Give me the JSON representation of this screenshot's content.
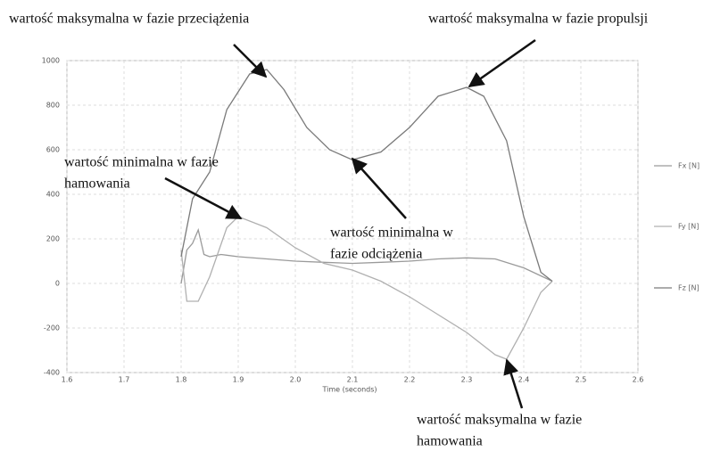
{
  "chart_data": {
    "type": "line",
    "xlabel": "Time (seconds)",
    "xlim": [
      1.6,
      2.6
    ],
    "xticks": [
      1.6,
      1.7,
      1.8,
      1.9,
      {
        "value": 2,
        "label": "2.0"
      },
      2.1,
      2.2,
      2.3,
      2.4,
      2.5,
      2.6
    ],
    "ylim": [
      -400,
      1000
    ],
    "yticks": [
      -400,
      -200,
      0,
      200,
      400,
      600,
      800,
      1000
    ],
    "grid": true,
    "legend": "right",
    "series": [
      {
        "name": "Fx [N]",
        "color": "#9a9a9a",
        "x": [
          1.8,
          1.81,
          1.82,
          1.83,
          1.84,
          1.85,
          1.87,
          1.9,
          1.95,
          2.0,
          2.05,
          2.1,
          2.15,
          2.2,
          2.25,
          2.3,
          2.35,
          2.4,
          2.45
        ],
        "values": [
          0,
          150,
          180,
          240,
          130,
          120,
          130,
          120,
          110,
          100,
          95,
          90,
          95,
          100,
          110,
          115,
          110,
          70,
          10
        ]
      },
      {
        "name": "Fy [N]",
        "color": "#b0b0b0",
        "x": [
          1.8,
          1.81,
          1.83,
          1.85,
          1.88,
          1.9,
          1.95,
          2.0,
          2.05,
          2.1,
          2.15,
          2.2,
          2.25,
          2.3,
          2.35,
          2.37,
          2.4,
          2.43,
          2.45
        ],
        "values": [
          150,
          -80,
          -80,
          30,
          250,
          300,
          250,
          160,
          90,
          60,
          10,
          -60,
          -140,
          -220,
          -320,
          -340,
          -200,
          -40,
          10
        ]
      },
      {
        "name": "Fz [N]",
        "color": "#7a7a7a",
        "x": [
          1.8,
          1.82,
          1.85,
          1.88,
          1.92,
          1.95,
          1.98,
          2.02,
          2.06,
          2.1,
          2.15,
          2.2,
          2.25,
          2.3,
          2.33,
          2.37,
          2.4,
          2.43,
          2.45
        ],
        "values": [
          120,
          380,
          500,
          780,
          940,
          960,
          870,
          700,
          600,
          555,
          590,
          700,
          840,
          880,
          840,
          640,
          300,
          50,
          10
        ]
      }
    ],
    "annotations": [
      {
        "lines": [
          "wartość maksymalna w fazie przeciążenia"
        ]
      },
      {
        "lines": [
          "wartość maksymalna w fazie propulsji"
        ]
      },
      {
        "lines": [
          "wartość minimalna w fazie",
          "hamowania"
        ]
      },
      {
        "lines": [
          "wartość minimalna w",
          "fazie odciążenia"
        ]
      },
      {
        "lines": [
          "wartość maksymalna w fazie",
          "hamowania"
        ]
      }
    ]
  }
}
